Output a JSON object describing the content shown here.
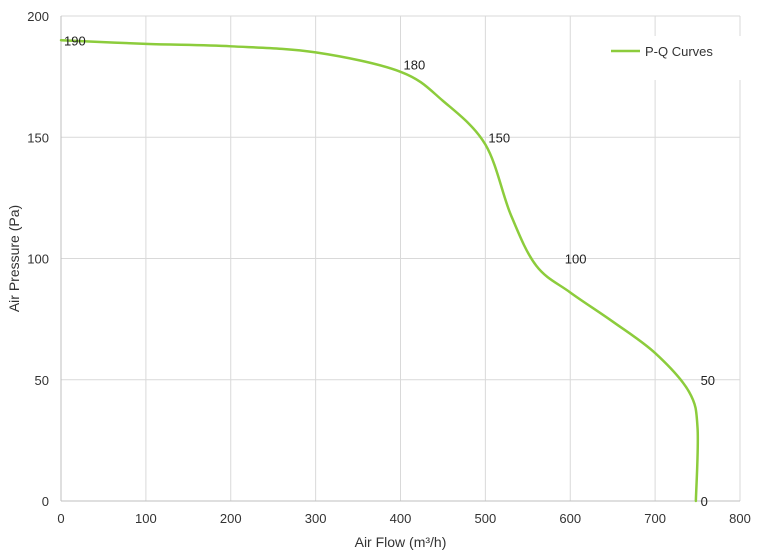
{
  "chart_data": {
    "type": "line",
    "xlabel": "Air Flow  (m³/h)",
    "ylabel": "Air Pressure  (Pa)",
    "xlim": [
      0,
      800
    ],
    "ylim": [
      0,
      200
    ],
    "x_ticks": [
      0,
      100,
      200,
      300,
      400,
      500,
      600,
      700,
      800
    ],
    "y_ticks": [
      0,
      50,
      100,
      150,
      200
    ],
    "grid": true,
    "legend_position": "top-right",
    "series": [
      {
        "name": "P-Q Curves",
        "color": "#8ccc3c",
        "points": [
          {
            "x": 0,
            "y": 190
          },
          {
            "x": 100,
            "y": 188.5
          },
          {
            "x": 200,
            "y": 187.5
          },
          {
            "x": 300,
            "y": 185
          },
          {
            "x": 400,
            "y": 177
          },
          {
            "x": 450,
            "y": 165
          },
          {
            "x": 500,
            "y": 147
          },
          {
            "x": 530,
            "y": 118
          },
          {
            "x": 560,
            "y": 97
          },
          {
            "x": 600,
            "y": 86
          },
          {
            "x": 650,
            "y": 74
          },
          {
            "x": 700,
            "y": 61
          },
          {
            "x": 740,
            "y": 45
          },
          {
            "x": 750,
            "y": 30
          },
          {
            "x": 748,
            "y": 0
          }
        ]
      }
    ],
    "data_labels": [
      {
        "text": "190",
        "x": 0,
        "y": 190
      },
      {
        "text": "180",
        "x": 400,
        "y": 180
      },
      {
        "text": "150",
        "x": 500,
        "y": 150
      },
      {
        "text": "100",
        "x": 590,
        "y": 100
      },
      {
        "text": "50",
        "x": 750,
        "y": 50
      },
      {
        "text": "0",
        "x": 750,
        "y": 0
      }
    ]
  }
}
